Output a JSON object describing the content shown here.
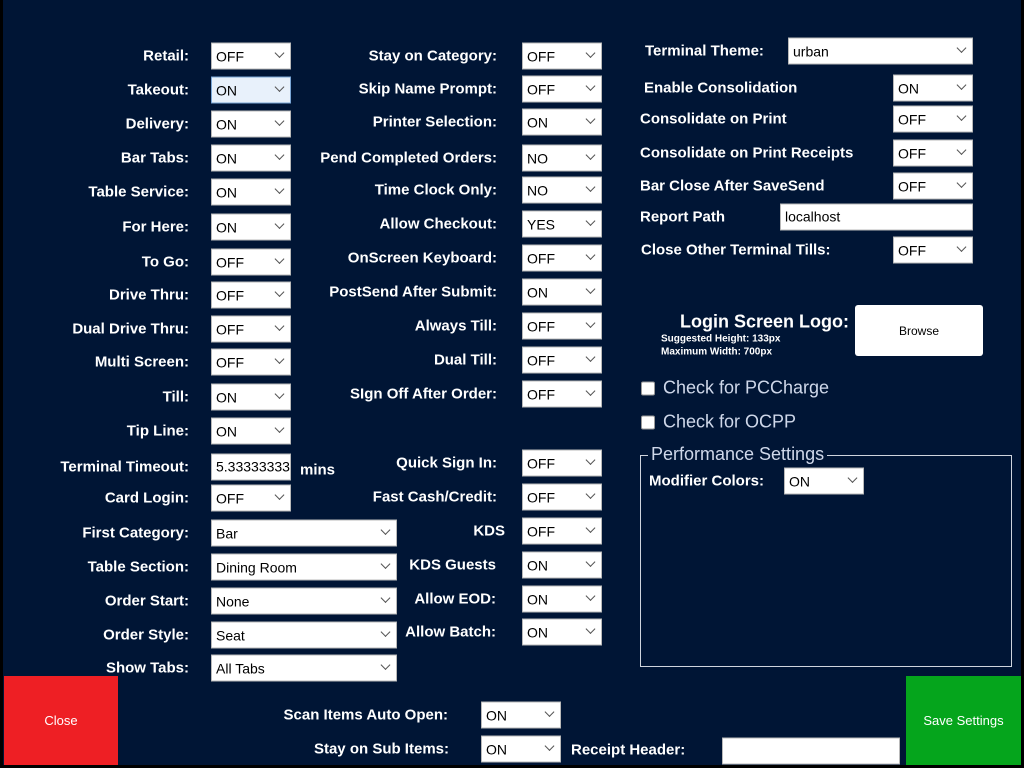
{
  "col1": [
    {
      "label": "Retail:",
      "value": "OFF"
    },
    {
      "label": "Takeout:",
      "value": "ON"
    },
    {
      "label": "Delivery:",
      "value": "ON"
    },
    {
      "label": "Bar Tabs:",
      "value": "ON"
    },
    {
      "label": "Table Service:",
      "value": "ON"
    },
    {
      "label": "For Here:",
      "value": "ON"
    },
    {
      "label": "To Go:",
      "value": "OFF"
    },
    {
      "label": "Drive Thru:",
      "value": "OFF"
    },
    {
      "label": "Dual Drive Thru:",
      "value": "OFF"
    },
    {
      "label": "Multi Screen:",
      "value": "OFF"
    },
    {
      "label": "Till:",
      "value": "ON"
    },
    {
      "label": "Tip Line:",
      "value": "ON"
    },
    {
      "label": "Terminal Timeout:",
      "value": "5.33333333",
      "unit": "mins"
    },
    {
      "label": "Card Login:",
      "value": "OFF"
    },
    {
      "label": "First Category:",
      "value": "Bar"
    },
    {
      "label": "Table Section:",
      "value": "Dining Room"
    },
    {
      "label": "Order Start:",
      "value": "None"
    },
    {
      "label": "Order Style:",
      "value": "Seat"
    },
    {
      "label": "Show Tabs:",
      "value": "All Tabs"
    }
  ],
  "col2": [
    {
      "label": "Stay on Category:",
      "value": "OFF"
    },
    {
      "label": "Skip Name Prompt:",
      "value": "OFF"
    },
    {
      "label": "Printer Selection:",
      "value": "ON"
    },
    {
      "label": "Pend Completed Orders:",
      "value": "NO"
    },
    {
      "label": "Time Clock Only:",
      "value": "NO"
    },
    {
      "label": "Allow Checkout:",
      "value": "YES"
    },
    {
      "label": "OnScreen Keyboard:",
      "value": "OFF"
    },
    {
      "label": "PostSend After Submit:",
      "value": "ON"
    },
    {
      "label": "Always Till:",
      "value": "OFF"
    },
    {
      "label": "Dual Till:",
      "value": "OFF"
    },
    {
      "label": "SIgn Off After Order:",
      "value": "OFF"
    },
    {
      "label": "Quick Sign In:",
      "value": "OFF"
    },
    {
      "label": "Fast Cash/Credit:",
      "value": "OFF"
    },
    {
      "label": "KDS",
      "value": "OFF"
    },
    {
      "label": "KDS Guests",
      "value": "ON"
    },
    {
      "label": "Allow EOD:",
      "value": "ON"
    },
    {
      "label": "Allow Batch:",
      "value": "ON"
    }
  ],
  "col3": [
    {
      "label": "Terminal Theme:",
      "value": "urban"
    },
    {
      "label": "Enable Consolidation",
      "value": "ON"
    },
    {
      "label": "Consolidate on Print",
      "value": "OFF"
    },
    {
      "label": "Consolidate on Print Receipts",
      "value": "OFF"
    },
    {
      "label": "Bar Close After SaveSend",
      "value": "OFF"
    },
    {
      "label": "Report Path",
      "value": "localhost"
    },
    {
      "label": "Close Other Terminal Tills:",
      "value": "OFF"
    }
  ],
  "logo": {
    "label": "Login Screen Logo:",
    "hint1": "Suggested Height: 133px",
    "hint2": "Maximum Width: 700px",
    "browse": "Browse"
  },
  "checks": [
    {
      "label": "Check for PCCharge",
      "checked": false
    },
    {
      "label": "Check for OCPP",
      "checked": false
    }
  ],
  "performance": {
    "title": "Performance Settings",
    "label": "Modifier Colors:",
    "value": "ON"
  },
  "bottom": {
    "scan_label": "Scan Items Auto Open:",
    "scan_value": "ON",
    "stay_label": "Stay on Sub Items:",
    "stay_value": "ON",
    "receipt_label": "Receipt Header:",
    "receipt_value": ""
  },
  "buttons": {
    "close": "Close",
    "save": "Save Settings",
    "close_color": "#ee1f24",
    "save_color": "#05a51c"
  }
}
